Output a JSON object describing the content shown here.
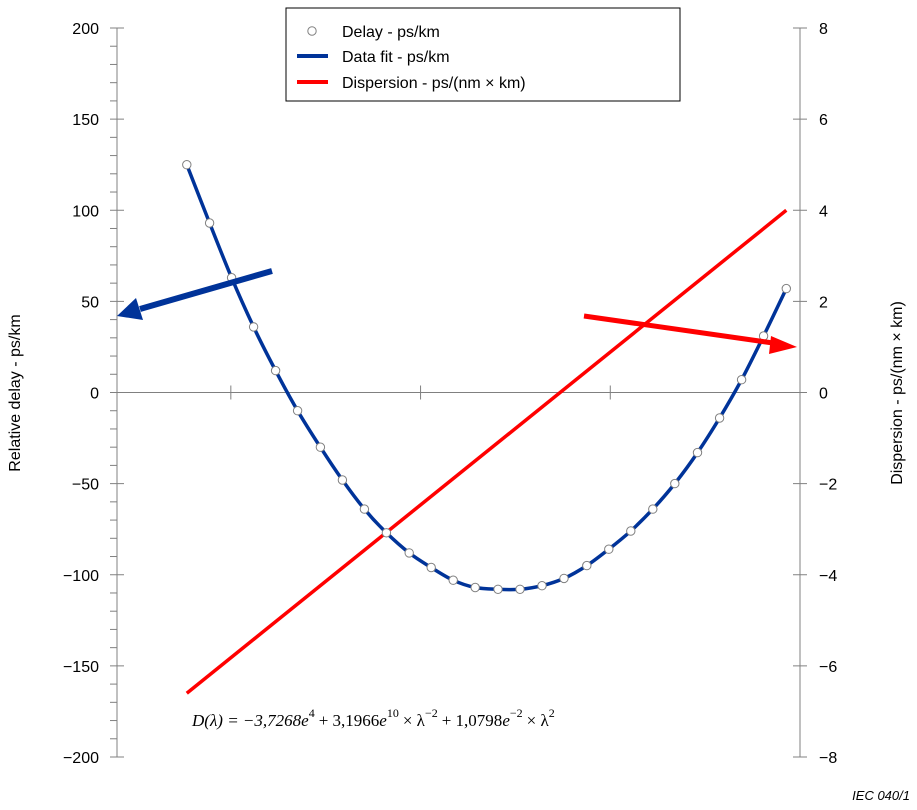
{
  "chart_data": {
    "type": "line",
    "title": "",
    "xlabel": "",
    "ylabel": "Relative delay - ps/km",
    "y2label": "Dispersion - ps/(nm × km)",
    "xlim": [
      1270,
      1360
    ],
    "ylim": [
      -200,
      200
    ],
    "y2lim": [
      -8,
      8
    ],
    "y_ticks": [
      200,
      150,
      100,
      50,
      0,
      -50,
      -100,
      -150,
      -200
    ],
    "y_tick_labels": [
      "200",
      "150",
      "100",
      "50",
      "0",
      "−50",
      "−100",
      "−150",
      "−200"
    ],
    "y2_ticks": [
      8,
      6,
      4,
      2,
      0,
      -2,
      -4,
      -6,
      -8
    ],
    "y2_tick_labels": [
      "8",
      "6",
      "4",
      "2",
      "0",
      "−2",
      "−4",
      "−6",
      "−8"
    ],
    "x_ticks": [
      1285,
      1310,
      1335
    ],
    "grid": false,
    "legend_position": "top-center",
    "legend": [
      {
        "name": "Delay - ps/km",
        "marker": "circle",
        "color": "#808080"
      },
      {
        "name": "Data fit - ps/km",
        "marker": "line",
        "color": "#003399"
      },
      {
        "name": "Dispersion - ps/(nm × km)",
        "marker": "line",
        "color": "#ff0000"
      }
    ],
    "series": [
      {
        "name": "Delay - ps/km",
        "kind": "scatter",
        "axis": "left",
        "color": "#808080",
        "x": [
          1279.2,
          1282.2,
          1285.1,
          1288.0,
          1290.9,
          1293.8,
          1296.8,
          1299.7,
          1302.6,
          1305.5,
          1308.5,
          1311.4,
          1314.3,
          1317.2,
          1320.2,
          1323.1,
          1326.0,
          1328.9,
          1331.9,
          1334.8,
          1337.7,
          1340.6,
          1343.5,
          1346.5,
          1349.4,
          1352.3,
          1355.2,
          1358.2
        ],
        "y": [
          125,
          93,
          63,
          36,
          12,
          -10,
          -30,
          -48,
          -64,
          -77,
          -88,
          -96,
          -103,
          -107,
          -108,
          -108,
          -106,
          -102,
          -95,
          -86,
          -76,
          -64,
          -50,
          -33,
          -14,
          7,
          31,
          57
        ]
      },
      {
        "name": "Data fit - ps/km",
        "kind": "line",
        "axis": "left",
        "color": "#003399",
        "x": [
          1279.2,
          1282.2,
          1285.1,
          1288.0,
          1290.9,
          1293.8,
          1296.8,
          1299.7,
          1302.6,
          1305.5,
          1308.5,
          1311.4,
          1314.3,
          1317.2,
          1320.2,
          1323.1,
          1326.0,
          1328.9,
          1331.9,
          1334.8,
          1337.7,
          1340.6,
          1343.5,
          1346.5,
          1349.4,
          1352.3,
          1355.2,
          1358.2
        ],
        "y": [
          125,
          93,
          63,
          36,
          12,
          -10,
          -30,
          -48,
          -64,
          -77,
          -88,
          -96,
          -103,
          -107,
          -108,
          -108,
          -106,
          -102,
          -95,
          -86,
          -76,
          -64,
          -50,
          -33,
          -14,
          7,
          31,
          57
        ]
      },
      {
        "name": "Dispersion - ps/(nm × km)",
        "kind": "line",
        "axis": "right",
        "color": "#ff0000",
        "x": [
          1279.2,
          1358.2
        ],
        "y": [
          -6.6,
          4.0
        ]
      }
    ],
    "annotations": [
      {
        "type": "arrow",
        "color": "#003399",
        "points_to": "left axis"
      },
      {
        "type": "arrow",
        "color": "#ff0000",
        "points_to": "right axis"
      }
    ],
    "formula": {
      "lhs": "D(λ) = −3,7268",
      "t1_base": "e",
      "t1_exp": "4",
      "plus1": "+ 3,1966",
      "t2_base": "e",
      "t2_exp": "10",
      "times1": "× λ",
      "t2_lexp": "−2",
      "plus2": "+ 1,0798",
      "t3_base": "e",
      "t3_exp": "−2",
      "times2": "× λ",
      "t3_lexp": "2"
    },
    "credit": "IEC  040/1"
  }
}
